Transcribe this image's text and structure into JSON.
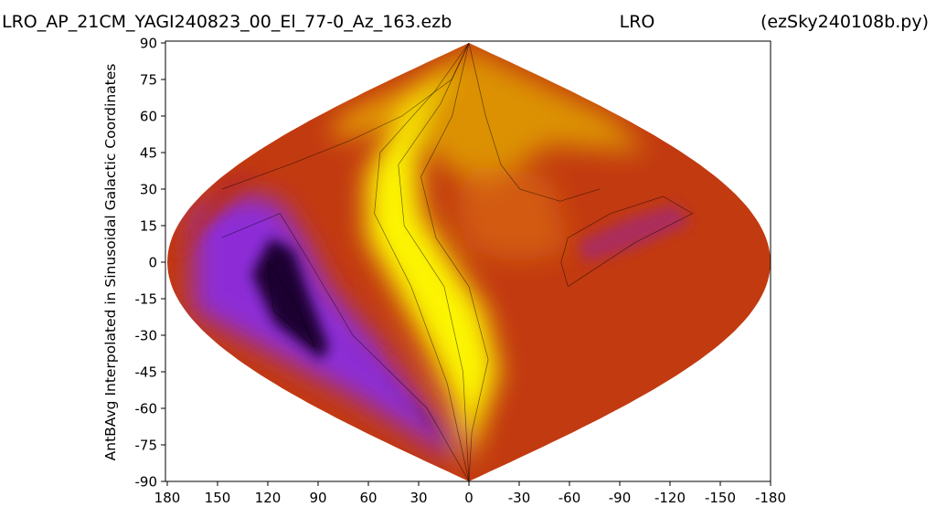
{
  "chart_data": {
    "type": "heatmap",
    "projection": "sinusoidal",
    "title_left": "LRO_AP_21CM_YAGI240823_00_El_77-0_Az_163.ezb",
    "title_center": "LRO",
    "title_right": "(ezSky240108b.py)",
    "xlabel": "",
    "ylabel": "AntBAvg Interpolated in Sinusoidal Galactic Coordinates",
    "xlim": [
      180,
      -180
    ],
    "ylim": [
      -90,
      90
    ],
    "x_ticks": [
      "180",
      "150",
      "120",
      "90",
      "60",
      "30",
      "0",
      "-30",
      "-60",
      "-90",
      "-120",
      "-150",
      "-180"
    ],
    "y_ticks": [
      "90",
      "75",
      "60",
      "45",
      "30",
      "15",
      "0",
      "-15",
      "-30",
      "-45",
      "-60",
      "-75",
      "-90"
    ],
    "colormap": "gnuplot",
    "colors": {
      "low": "#1a0033",
      "mid_low": "#8a2be2",
      "mid": "#c23a10",
      "mid_high": "#e0a000",
      "high": "#ffff00"
    },
    "features": [
      {
        "name": "galactic plane bright band",
        "region": "lon 0 to 60, lat -80 to 80",
        "level": "high"
      },
      {
        "name": "dark minimum",
        "region": "lon 100 to 130, lat -40 to 20",
        "level": "low"
      },
      {
        "name": "warm plateau",
        "region": "lon -60 to -180, lat -90 to 30",
        "level": "mid"
      },
      {
        "name": "local enhancement",
        "region": "lon -50 to -140, lat 0 to 25",
        "level": "mid"
      }
    ],
    "grid": false
  }
}
